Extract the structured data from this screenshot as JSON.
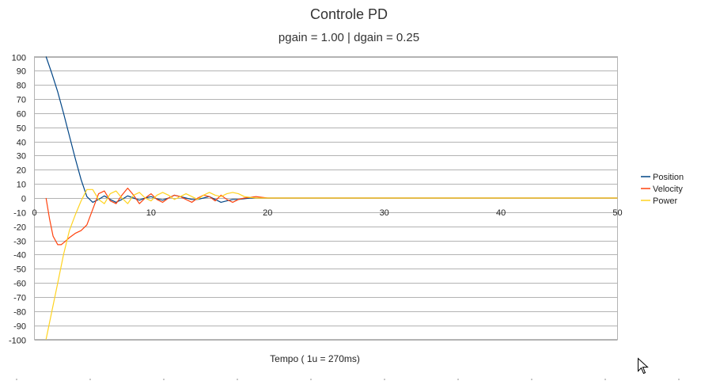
{
  "chart_data": {
    "type": "line",
    "title": "Controle PD",
    "subtitle": "pgain = 1.00 | dgain = 0.25",
    "xlabel": "Tempo ( 1u = 270ms)",
    "ylabel": "",
    "xlim": [
      0,
      50
    ],
    "ylim": [
      -100,
      100
    ],
    "xticks": [
      0,
      10,
      20,
      30,
      40,
      50
    ],
    "yticks": [
      100,
      90,
      80,
      70,
      60,
      50,
      40,
      30,
      20,
      10,
      0,
      -10,
      -20,
      -30,
      -40,
      -50,
      -60,
      -70,
      -80,
      -90,
      -100
    ],
    "grid": true,
    "legend_position": "right",
    "series": [
      {
        "name": "Position",
        "color": "#004586",
        "x": [
          1,
          1.5,
          2,
          2.5,
          3,
          3.5,
          4,
          4.5,
          5,
          5.5,
          6,
          6.5,
          7,
          7.5,
          8,
          8.5,
          9,
          9.5,
          10,
          10.5,
          11,
          11.5,
          12,
          12.5,
          13,
          13.5,
          14,
          14.5,
          15,
          15.5,
          16,
          16.5,
          17,
          17.5,
          18,
          18.5,
          19,
          19.5,
          20,
          21,
          22,
          25,
          30,
          35,
          40,
          45,
          50
        ],
        "y": [
          100,
          88,
          75,
          60,
          44,
          28,
          13,
          1,
          -3,
          -1,
          1.5,
          -1,
          -3,
          -1,
          1.5,
          0,
          -1.5,
          0,
          1,
          -0.5,
          -1.5,
          0,
          2,
          1,
          0,
          -1,
          -1,
          0,
          1,
          -1,
          -3,
          -2,
          -1,
          -1,
          -0.5,
          0,
          0,
          0,
          0,
          0,
          0,
          0,
          0,
          0,
          0,
          0,
          0
        ]
      },
      {
        "name": "Velocity",
        "color": "#ff420e",
        "x": [
          1,
          1.3,
          1.6,
          2,
          2.3,
          2.6,
          3,
          3.5,
          4,
          4.5,
          5,
          5.5,
          6,
          6.5,
          7,
          7.5,
          8,
          8.5,
          9,
          9.5,
          10,
          10.5,
          11,
          11.5,
          12,
          12.5,
          13,
          13.5,
          14,
          14.5,
          15,
          15.5,
          16,
          16.5,
          17,
          17.5,
          18,
          18.5,
          19,
          19.5,
          20,
          21,
          22,
          25,
          30,
          35,
          40,
          45,
          50
        ],
        "y": [
          0,
          -15,
          -27,
          -33,
          -33,
          -31,
          -28,
          -25,
          -23,
          -19,
          -8,
          3,
          5,
          -2,
          -4,
          2,
          7,
          2,
          -4,
          0,
          3,
          -1,
          -3,
          0,
          2,
          1,
          -1,
          -3,
          0,
          2,
          1,
          -2,
          2,
          -1,
          -3,
          -1,
          0,
          0.5,
          1,
          0.5,
          0,
          0,
          0,
          0,
          0,
          0,
          0,
          0,
          0
        ]
      },
      {
        "name": "Power",
        "color": "#ffd320",
        "x": [
          1,
          1.5,
          2,
          2.5,
          3,
          3.5,
          4,
          4.5,
          5,
          5.5,
          6,
          6.5,
          7,
          7.5,
          8,
          8.5,
          9,
          9.5,
          10,
          10.5,
          11,
          11.5,
          12,
          12.5,
          13,
          13.5,
          14,
          14.5,
          15,
          15.5,
          16,
          16.5,
          17,
          17.5,
          18,
          18.5,
          19,
          19.5,
          20,
          21,
          22,
          25,
          30,
          35,
          40,
          45,
          50
        ],
        "y": [
          -100,
          -80,
          -60,
          -40,
          -23,
          -12,
          -2,
          6,
          6,
          -1,
          -4,
          3,
          5,
          0,
          -4,
          2,
          4,
          0,
          -2,
          2,
          4,
          2,
          -1,
          1,
          3,
          1,
          -1,
          2,
          4,
          2,
          1,
          3,
          4,
          3,
          1,
          0.5,
          0,
          0,
          0,
          0,
          0,
          0,
          0,
          0,
          0,
          0,
          0
        ]
      }
    ]
  }
}
